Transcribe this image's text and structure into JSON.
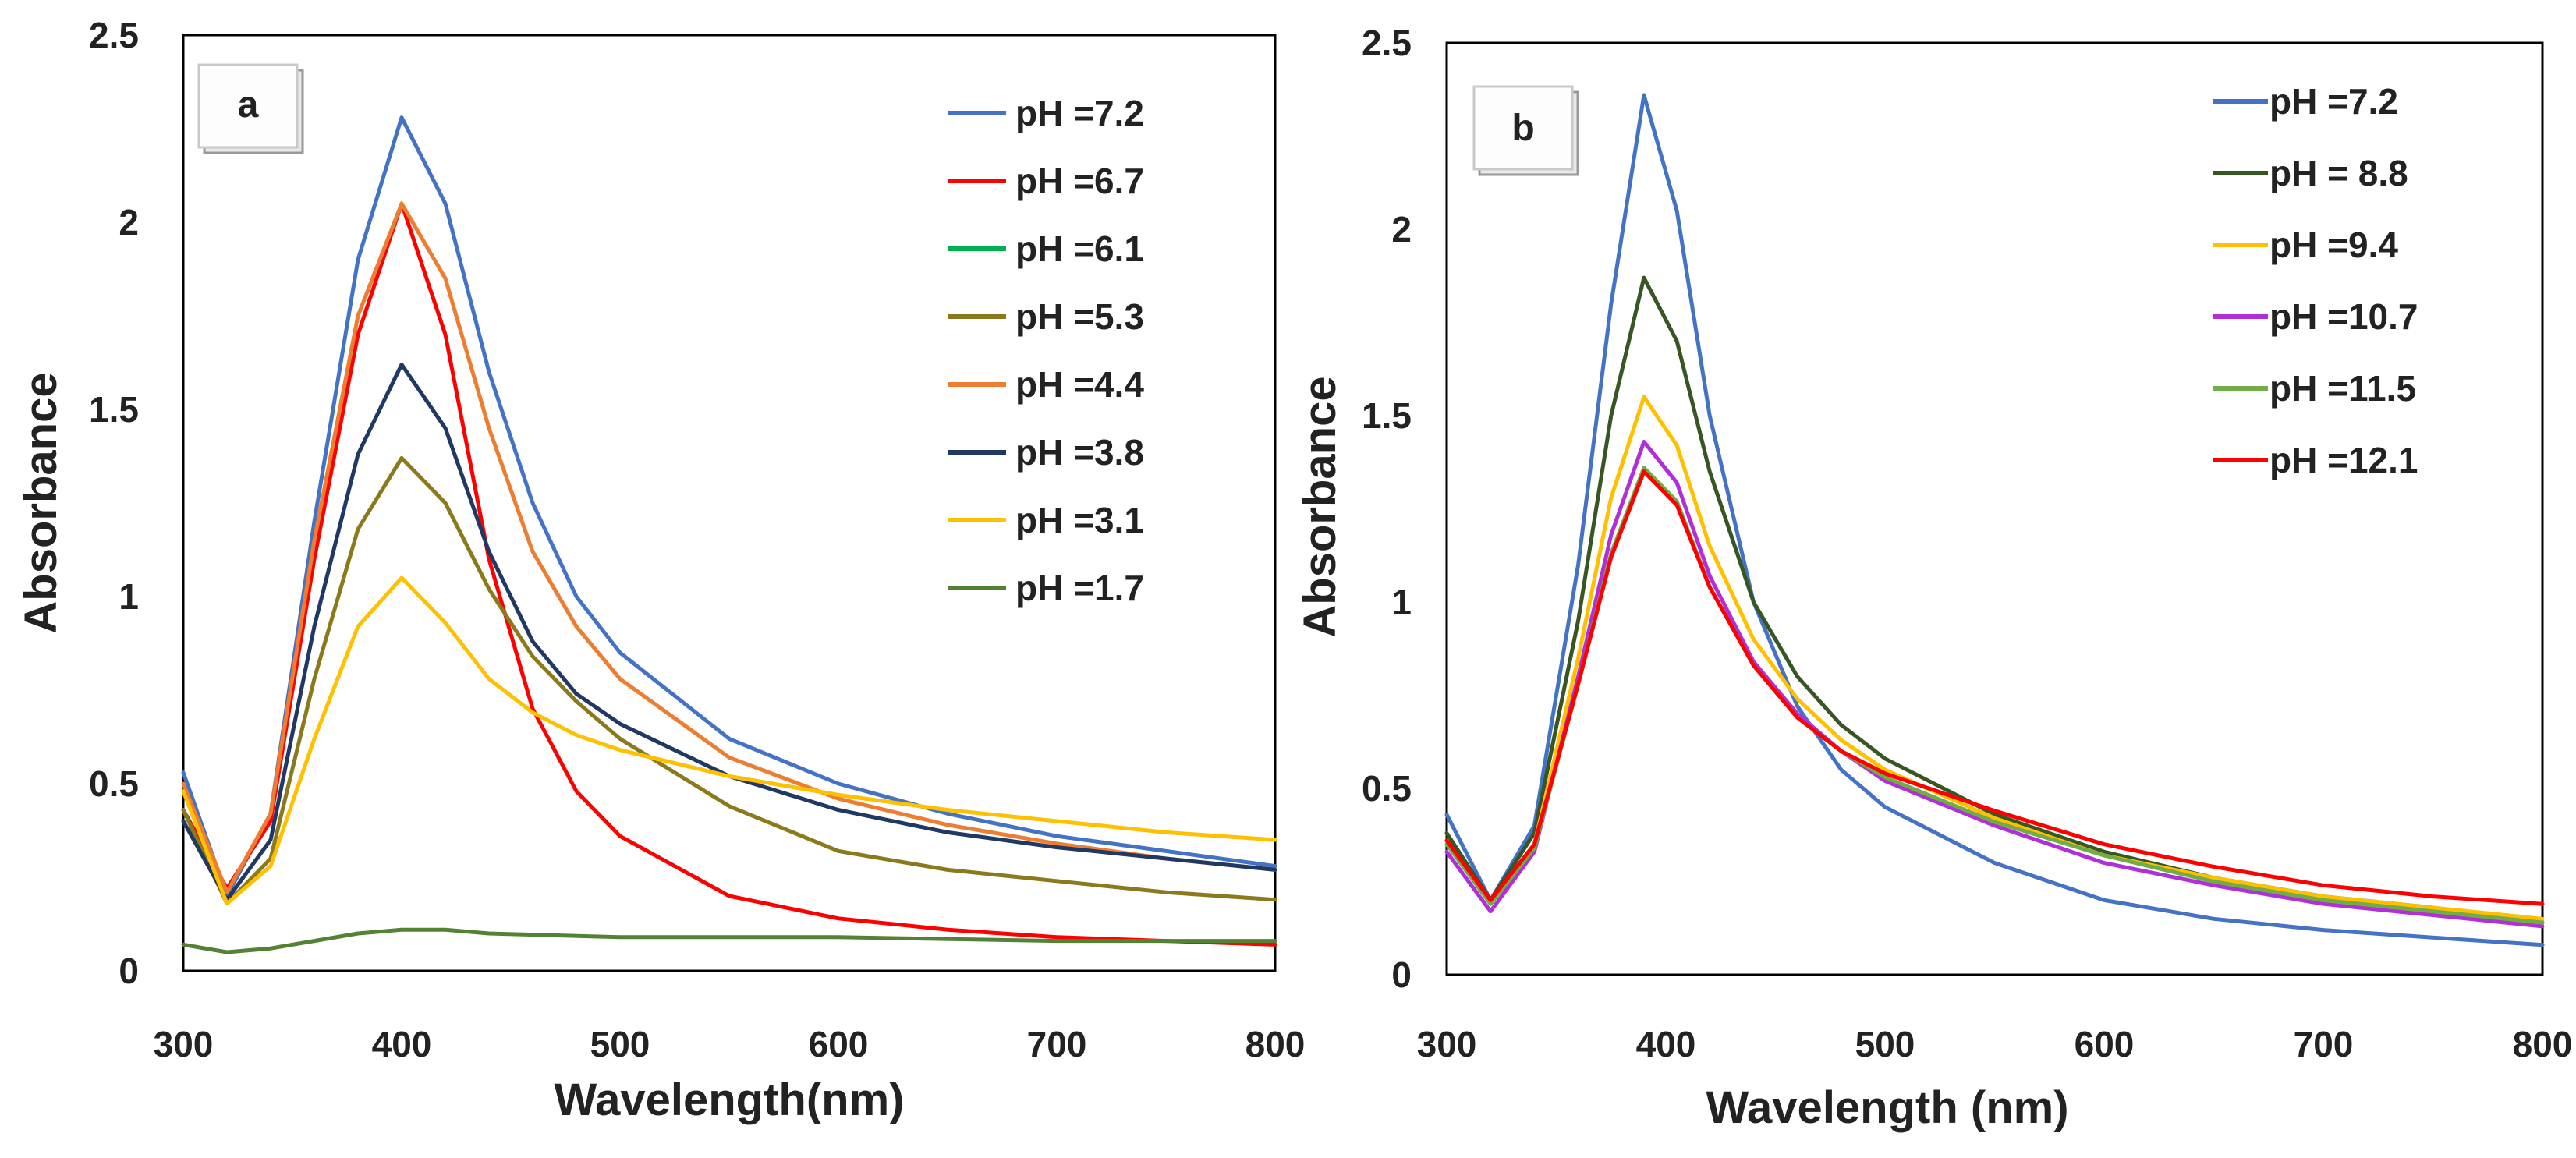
{
  "figure": {
    "description_free": true
  },
  "chart_data": [
    {
      "type": "line",
      "panel_label": "a",
      "xlabel": "Wavelength(nm)",
      "ylabel": "Absorbance",
      "xlim": [
        300,
        800
      ],
      "ylim": [
        0,
        2.5
      ],
      "xticks": [
        300,
        400,
        500,
        600,
        700,
        800
      ],
      "yticks": [
        0,
        0.5,
        1,
        1.5,
        2,
        2.5
      ],
      "ytick_labels": [
        "0",
        "0.5",
        "1",
        "1.5",
        "2",
        "2.5"
      ],
      "grid": false,
      "legend_position": "top-right",
      "series": [
        {
          "name": "pH =7.2",
          "color": "#4472C4",
          "x": [
            300,
            320,
            340,
            360,
            380,
            400,
            420,
            440,
            460,
            480,
            500,
            550,
            600,
            650,
            700,
            750,
            800
          ],
          "y": [
            0.53,
            0.2,
            0.42,
            1.2,
            1.9,
            2.28,
            2.05,
            1.6,
            1.25,
            1.0,
            0.85,
            0.62,
            0.5,
            0.42,
            0.36,
            0.32,
            0.28
          ]
        },
        {
          "name": "pH =6.7",
          "color": "#FF0000",
          "x": [
            300,
            320,
            340,
            360,
            380,
            400,
            420,
            440,
            460,
            480,
            500,
            550,
            600,
            650,
            700,
            750,
            800
          ],
          "y": [
            0.43,
            0.22,
            0.4,
            1.1,
            1.7,
            2.05,
            1.7,
            1.1,
            0.7,
            0.48,
            0.36,
            0.2,
            0.14,
            0.11,
            0.09,
            0.08,
            0.07
          ]
        },
        {
          "name": "pH =6.1",
          "color": "#00B050",
          "x": [],
          "y": []
        },
        {
          "name": "pH =5.3",
          "color": "#8B7A1C",
          "x": [
            300,
            320,
            340,
            360,
            380,
            400,
            420,
            440,
            460,
            480,
            500,
            550,
            600,
            650,
            700,
            750,
            800
          ],
          "y": [
            0.43,
            0.18,
            0.3,
            0.78,
            1.18,
            1.37,
            1.25,
            1.02,
            0.84,
            0.72,
            0.62,
            0.44,
            0.32,
            0.27,
            0.24,
            0.21,
            0.19
          ]
        },
        {
          "name": "pH =4.4",
          "color": "#ED7D31",
          "x": [
            300,
            320,
            340,
            360,
            380,
            400,
            420,
            440,
            460,
            480,
            500,
            550,
            600,
            650,
            700,
            750,
            800
          ],
          "y": [
            0.5,
            0.21,
            0.42,
            1.15,
            1.75,
            2.05,
            1.85,
            1.45,
            1.12,
            0.92,
            0.78,
            0.57,
            0.46,
            0.39,
            0.34,
            0.3,
            0.27
          ]
        },
        {
          "name": "pH =3.8",
          "color": "#1F3864",
          "x": [
            300,
            320,
            340,
            360,
            380,
            400,
            420,
            440,
            460,
            480,
            500,
            550,
            600,
            650,
            700,
            750,
            800
          ],
          "y": [
            0.4,
            0.19,
            0.35,
            0.92,
            1.38,
            1.62,
            1.45,
            1.12,
            0.88,
            0.74,
            0.66,
            0.52,
            0.43,
            0.37,
            0.33,
            0.3,
            0.27
          ]
        },
        {
          "name": "pH =3.1",
          "color": "#FFC000",
          "x": [
            300,
            320,
            340,
            360,
            380,
            400,
            420,
            440,
            460,
            480,
            500,
            550,
            600,
            650,
            700,
            750,
            800
          ],
          "y": [
            0.48,
            0.18,
            0.28,
            0.62,
            0.92,
            1.05,
            0.93,
            0.78,
            0.69,
            0.63,
            0.59,
            0.52,
            0.47,
            0.43,
            0.4,
            0.37,
            0.35
          ]
        },
        {
          "name": "pH =1.7",
          "color": "#548235",
          "x": [
            300,
            320,
            340,
            360,
            380,
            400,
            420,
            440,
            500,
            600,
            700,
            800
          ],
          "y": [
            0.07,
            0.05,
            0.06,
            0.08,
            0.1,
            0.11,
            0.11,
            0.1,
            0.09,
            0.09,
            0.08,
            0.08
          ]
        }
      ]
    },
    {
      "type": "line",
      "panel_label": "b",
      "xlabel": "Wavelength (nm)",
      "ylabel": "Absorbance",
      "xlim": [
        300,
        800
      ],
      "ylim": [
        0,
        2.5
      ],
      "xticks": [
        300,
        400,
        500,
        600,
        700,
        800
      ],
      "yticks": [
        0,
        0.5,
        1,
        1.5,
        2,
        2.5
      ],
      "ytick_labels": [
        "0",
        "0.5",
        "1",
        "1.5",
        "2",
        "2.5"
      ],
      "grid": false,
      "legend_position": "top-right",
      "series": [
        {
          "name": "pH =7.2",
          "color": "#4472C4",
          "x": [
            300,
            320,
            340,
            360,
            375,
            390,
            405,
            420,
            440,
            460,
            480,
            500,
            550,
            600,
            650,
            700,
            750,
            800
          ],
          "y": [
            0.43,
            0.2,
            0.4,
            1.1,
            1.8,
            2.36,
            2.05,
            1.5,
            1.0,
            0.72,
            0.55,
            0.45,
            0.3,
            0.2,
            0.15,
            0.12,
            0.1,
            0.08
          ]
        },
        {
          "name": "pH = 8.8",
          "color": "#375623",
          "x": [
            300,
            320,
            340,
            360,
            375,
            390,
            405,
            420,
            440,
            460,
            480,
            500,
            550,
            600,
            650,
            700,
            750,
            800
          ],
          "y": [
            0.38,
            0.2,
            0.38,
            0.95,
            1.5,
            1.87,
            1.7,
            1.35,
            1.0,
            0.8,
            0.67,
            0.58,
            0.43,
            0.33,
            0.26,
            0.21,
            0.18,
            0.14
          ]
        },
        {
          "name": "pH =9.4",
          "color": "#FFC000",
          "x": [
            300,
            320,
            340,
            360,
            375,
            390,
            405,
            420,
            440,
            460,
            480,
            500,
            550,
            600,
            650,
            700,
            750,
            800
          ],
          "y": [
            0.36,
            0.19,
            0.35,
            0.85,
            1.28,
            1.55,
            1.42,
            1.15,
            0.9,
            0.74,
            0.63,
            0.55,
            0.42,
            0.32,
            0.26,
            0.21,
            0.18,
            0.15
          ]
        },
        {
          "name": "pH =10.7",
          "color": "#B12FD8",
          "x": [
            300,
            320,
            340,
            360,
            375,
            390,
            405,
            420,
            440,
            460,
            480,
            500,
            550,
            600,
            650,
            700,
            750,
            800
          ],
          "y": [
            0.33,
            0.17,
            0.33,
            0.8,
            1.18,
            1.43,
            1.32,
            1.07,
            0.84,
            0.7,
            0.6,
            0.52,
            0.4,
            0.3,
            0.24,
            0.19,
            0.16,
            0.13
          ]
        },
        {
          "name": "pH =11.5",
          "color": "#70AD47",
          "x": [
            300,
            320,
            340,
            360,
            375,
            390,
            405,
            420,
            440,
            460,
            480,
            500,
            550,
            600,
            650,
            700,
            750,
            800
          ],
          "y": [
            0.35,
            0.19,
            0.34,
            0.78,
            1.13,
            1.36,
            1.27,
            1.04,
            0.83,
            0.69,
            0.6,
            0.53,
            0.41,
            0.32,
            0.25,
            0.2,
            0.17,
            0.14
          ]
        },
        {
          "name": "pH =12.1",
          "color": "#FF0000",
          "x": [
            300,
            320,
            340,
            360,
            375,
            390,
            405,
            420,
            440,
            460,
            480,
            500,
            550,
            600,
            650,
            700,
            750,
            800
          ],
          "y": [
            0.36,
            0.2,
            0.35,
            0.78,
            1.12,
            1.35,
            1.26,
            1.04,
            0.83,
            0.69,
            0.6,
            0.54,
            0.44,
            0.35,
            0.29,
            0.24,
            0.21,
            0.19
          ]
        }
      ]
    }
  ]
}
